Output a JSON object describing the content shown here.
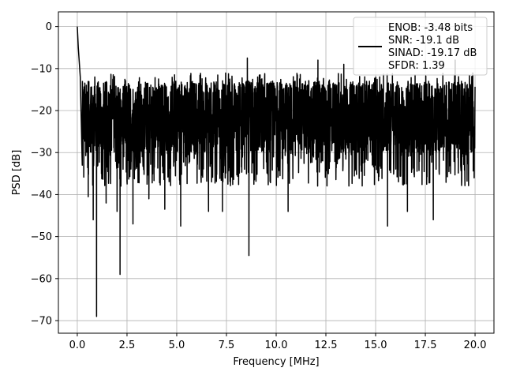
{
  "chart_data": {
    "type": "line",
    "title": "",
    "xlabel": "Frequency [MHz]",
    "ylabel": "PSD [dB]",
    "xlim": [
      -0.95,
      20.95
    ],
    "ylim": [
      -73,
      3.5
    ],
    "xticks": [
      0.0,
      2.5,
      5.0,
      7.5,
      10.0,
      12.5,
      15.0,
      17.5,
      20.0
    ],
    "xtick_labels": [
      "0.0",
      "2.5",
      "5.0",
      "7.5",
      "10.0",
      "12.5",
      "15.0",
      "17.5",
      "20.0"
    ],
    "yticks": [
      0,
      -10,
      -20,
      -30,
      -40,
      -50,
      -60,
      -70
    ],
    "ytick_labels": [
      "0",
      "−10",
      "−20",
      "−30",
      "−40",
      "−50",
      "−60",
      "−70"
    ],
    "grid": true,
    "legend_position": "top-right",
    "legend_lines": [
      "ENOB: -3.48 bits",
      "SNR: -19.1 dB",
      "SINAD: -19.17 dB",
      "SFDR: 1.39"
    ],
    "series_color": "#000000",
    "noise_band": {
      "x_range": [
        0.0,
        20.0
      ],
      "typical_low": -30,
      "typical_high": -13,
      "description_points": [
        {
          "x": 0.0,
          "y": 0
        },
        {
          "x": 0.05,
          "y": -5
        },
        {
          "x": 0.15,
          "y": -12
        },
        {
          "x": 0.25,
          "y": -33
        }
      ]
    },
    "notable_points": [
      {
        "x": 0.0,
        "y": 0
      },
      {
        "x": 0.55,
        "y": -40.5
      },
      {
        "x": 0.8,
        "y": -46
      },
      {
        "x": 0.97,
        "y": -69
      },
      {
        "x": 1.45,
        "y": -42
      },
      {
        "x": 2.0,
        "y": -44
      },
      {
        "x": 2.15,
        "y": -59
      },
      {
        "x": 2.8,
        "y": -47
      },
      {
        "x": 3.6,
        "y": -41
      },
      {
        "x": 4.4,
        "y": -43.5
      },
      {
        "x": 5.2,
        "y": -47.5
      },
      {
        "x": 6.6,
        "y": -44
      },
      {
        "x": 7.3,
        "y": -44
      },
      {
        "x": 8.63,
        "y": -54.5
      },
      {
        "x": 8.55,
        "y": -7.5
      },
      {
        "x": 10.6,
        "y": -44
      },
      {
        "x": 12.1,
        "y": -8
      },
      {
        "x": 13.4,
        "y": -9
      },
      {
        "x": 15.6,
        "y": -47.5
      },
      {
        "x": 16.6,
        "y": -44
      },
      {
        "x": 17.9,
        "y": -46
      },
      {
        "x": 19.0,
        "y": -8
      }
    ]
  }
}
